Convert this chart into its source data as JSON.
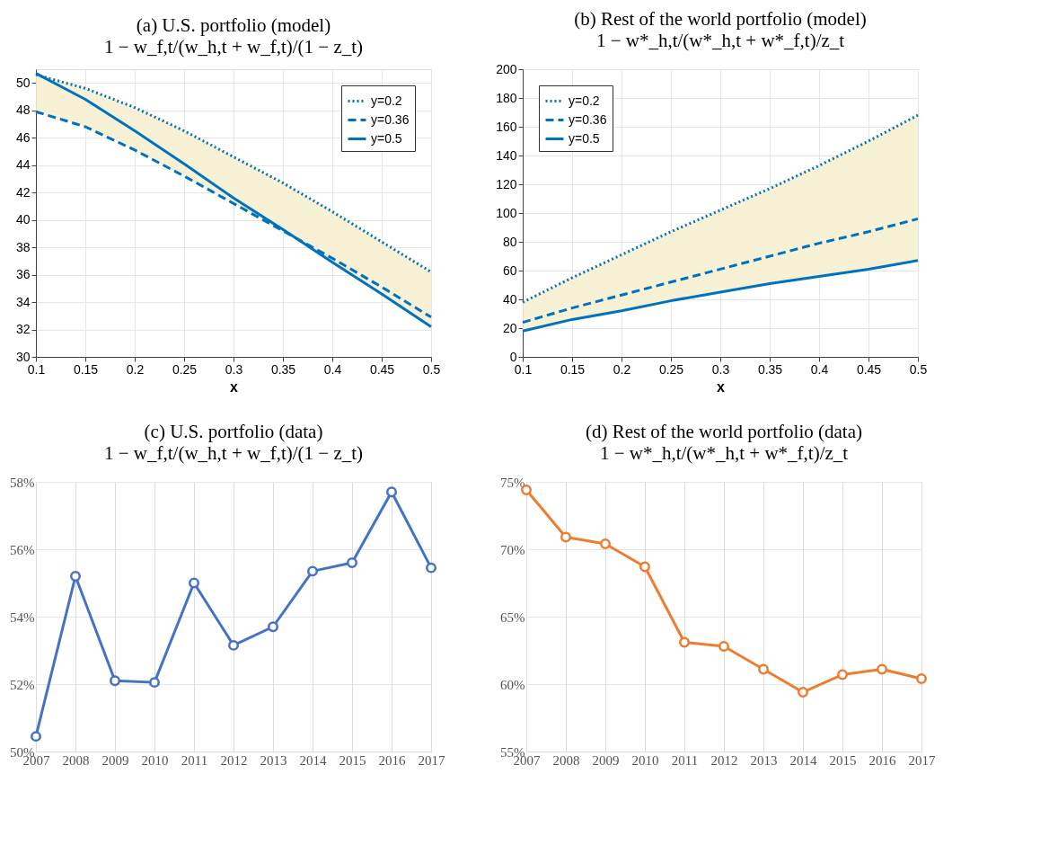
{
  "chart_data": [
    {
      "type": "line",
      "title": "(a) U.S. portfolio (model)",
      "subtitle": "1 − w_f,t/(w_h,t + w_f,t)/(1 − z_t)",
      "xlabel": "x",
      "x": [
        0.1,
        0.15,
        0.2,
        0.25,
        0.3,
        0.35,
        0.4,
        0.45,
        0.5
      ],
      "series": [
        {
          "name": "y=0.2",
          "color": "#0072bd",
          "line_style": "dotted",
          "values": [
            50.6,
            49.6,
            48.2,
            46.5,
            44.6,
            42.7,
            40.6,
            38.4,
            36.2
          ],
          "lower": [
            47.9,
            46.8,
            45.1,
            43.2,
            41.2,
            39.2,
            36.9,
            34.6,
            32.2
          ],
          "upper": [
            50.7,
            49.6,
            48.2,
            46.5,
            44.6,
            42.7,
            40.6,
            38.4,
            36.2
          ]
        },
        {
          "name": "y=0.36",
          "color": "#0072bd",
          "line_style": "dashed",
          "values": [
            47.9,
            46.8,
            45.1,
            43.2,
            41.2,
            39.2,
            37.2,
            35.1,
            32.9
          ]
        },
        {
          "name": "y=0.5",
          "color": "#0072bd",
          "line_style": "solid",
          "values": [
            50.7,
            48.8,
            46.5,
            44.1,
            41.6,
            39.3,
            36.9,
            34.6,
            32.2
          ]
        }
      ],
      "xlim": [
        0.1,
        0.5
      ],
      "xticks": [
        0.1,
        0.15,
        0.2,
        0.25,
        0.3,
        0.35,
        0.4,
        0.45,
        0.5
      ],
      "ylim": [
        30,
        51
      ],
      "yticks": [
        30,
        32,
        34,
        36,
        38,
        40,
        42,
        44,
        46,
        48,
        50
      ],
      "grid": true,
      "legend": "top right"
    },
    {
      "type": "line",
      "title": "(b) Rest of the world portfolio (model)",
      "subtitle": "1 − w*_h,t/(w*_h,t + w*_f,t)/z_t",
      "xlabel": "x",
      "x": [
        0.1,
        0.15,
        0.2,
        0.25,
        0.3,
        0.35,
        0.4,
        0.45,
        0.5
      ],
      "series": [
        {
          "name": "y=0.2",
          "color": "#0072bd",
          "line_style": "dotted",
          "values": [
            38,
            55,
            71,
            87,
            102,
            117,
            133,
            150,
            168
          ],
          "lower": [
            18,
            26,
            32,
            39,
            45,
            51,
            56,
            61,
            67
          ],
          "upper": [
            38,
            55,
            71,
            87,
            102,
            117,
            133,
            150,
            168
          ]
        },
        {
          "name": "y=0.36",
          "color": "#0072bd",
          "line_style": "dashed",
          "values": [
            24,
            34,
            43,
            52,
            61,
            70,
            79,
            87,
            96
          ]
        },
        {
          "name": "y=0.5",
          "color": "#0072bd",
          "line_style": "solid",
          "values": [
            18,
            26,
            32,
            39,
            45,
            51,
            56,
            61,
            67
          ]
        }
      ],
      "xlim": [
        0.1,
        0.5
      ],
      "xticks": [
        0.1,
        0.15,
        0.2,
        0.25,
        0.3,
        0.35,
        0.4,
        0.45,
        0.5
      ],
      "ylim": [
        0,
        200
      ],
      "yticks": [
        0,
        20,
        40,
        60,
        80,
        100,
        120,
        140,
        160,
        180,
        200
      ],
      "grid": true,
      "legend": "top left"
    },
    {
      "type": "line",
      "title": "(c) U.S. portfolio (data)",
      "subtitle": "1 − w_f,t/(w_h,t + w_f,t)/(1 − z_t)",
      "categories": [
        "2007",
        "2008",
        "2009",
        "2010",
        "2011",
        "2012",
        "2013",
        "2014",
        "2015",
        "2016",
        "2017"
      ],
      "series": [
        {
          "color": "#4472c4",
          "line_style": "solid",
          "values": [
            50.45,
            55.2,
            52.1,
            52.05,
            55.0,
            53.15,
            53.7,
            55.35,
            55.6,
            57.7,
            55.45
          ]
        }
      ],
      "ylim": [
        50,
        58
      ],
      "yticks": [
        {
          "value": 50,
          "label": "50%"
        },
        {
          "value": 52,
          "label": "52%"
        },
        {
          "value": 54,
          "label": "54%"
        },
        {
          "value": 56,
          "label": "56%"
        },
        {
          "value": 58,
          "label": "58%"
        }
      ],
      "grid": true,
      "marker": "circle"
    },
    {
      "type": "line",
      "title": "(d) Rest of the world portfolio (data)",
      "subtitle": "1 − w*_h,t/(w*_h,t + w*_f,t)/z_t",
      "categories": [
        "2007",
        "2008",
        "2009",
        "2010",
        "2011",
        "2012",
        "2013",
        "2014",
        "2015",
        "2016",
        "2017"
      ],
      "series": [
        {
          "color": "#ed7d31",
          "line_style": "solid",
          "values": [
            74.4,
            70.9,
            70.4,
            68.7,
            63.1,
            62.8,
            61.1,
            59.4,
            60.7,
            61.1,
            60.4
          ]
        }
      ],
      "ylim": [
        55,
        75
      ],
      "yticks": [
        {
          "value": 55,
          "label": "55%"
        },
        {
          "value": 60,
          "label": "60%"
        },
        {
          "value": 65,
          "label": "65%"
        },
        {
          "value": 70,
          "label": "70%"
        },
        {
          "value": 75,
          "label": "75%"
        }
      ],
      "grid": true,
      "marker": "circle"
    }
  ]
}
